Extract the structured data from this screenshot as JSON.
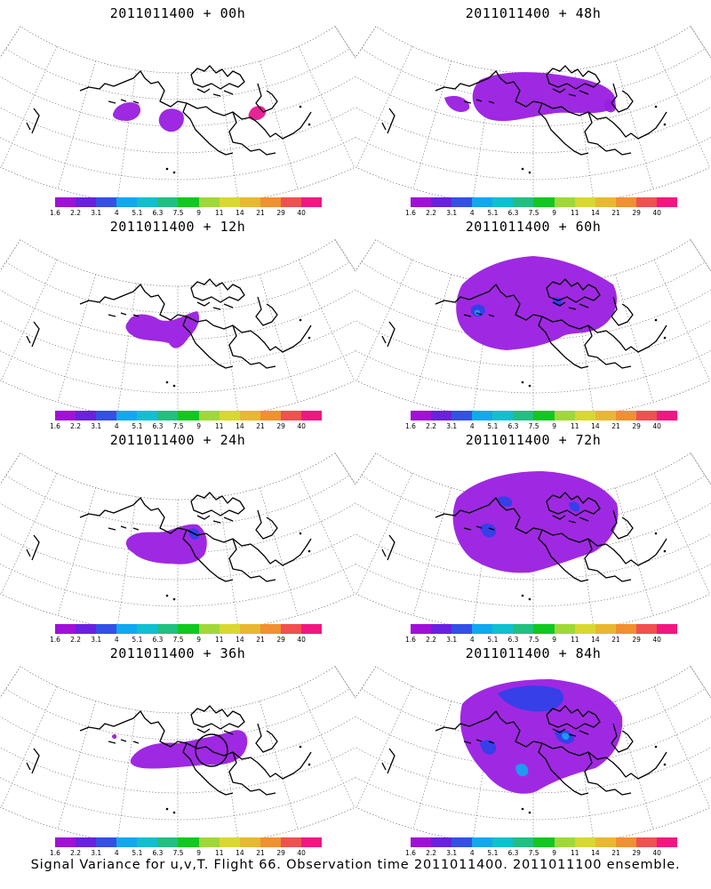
{
  "caption": "Signal Variance for u,v,T. Flight 66. Observation time 2011011400. 2011011100 ensemble.",
  "colorbar": {
    "colors": [
      "#a010d8",
      "#6a20e0",
      "#3450e6",
      "#10a8ee",
      "#10c0d0",
      "#20c080",
      "#10c820",
      "#a0d838",
      "#d8d830",
      "#e8b830",
      "#f09030",
      "#f05050",
      "#f01880"
    ],
    "labels": [
      "1.6",
      "2.2",
      "3.1",
      "4",
      "5.1",
      "6.3",
      "7.5",
      "9",
      "11",
      "14",
      "21",
      "29",
      "40"
    ]
  },
  "panels": [
    {
      "title": "2011011400 + 00h",
      "col": 0,
      "row": 0
    },
    {
      "title": "2011011400 + 48h",
      "col": 1,
      "row": 0
    },
    {
      "title": "2011011400 + 12h",
      "col": 0,
      "row": 1
    },
    {
      "title": "2011011400 + 60h",
      "col": 1,
      "row": 1
    },
    {
      "title": "2011011400 + 24h",
      "col": 0,
      "row": 2
    },
    {
      "title": "2011011400 + 72h",
      "col": 1,
      "row": 2
    },
    {
      "title": "2011011400 + 36h",
      "col": 0,
      "row": 3
    },
    {
      "title": "2011011400 + 84h",
      "col": 1,
      "row": 3
    }
  ],
  "fills": {
    "purple": "#9a1ee0",
    "blue": "#3040e8",
    "cyan": "#18a0f0",
    "magenta": "#e81890"
  }
}
